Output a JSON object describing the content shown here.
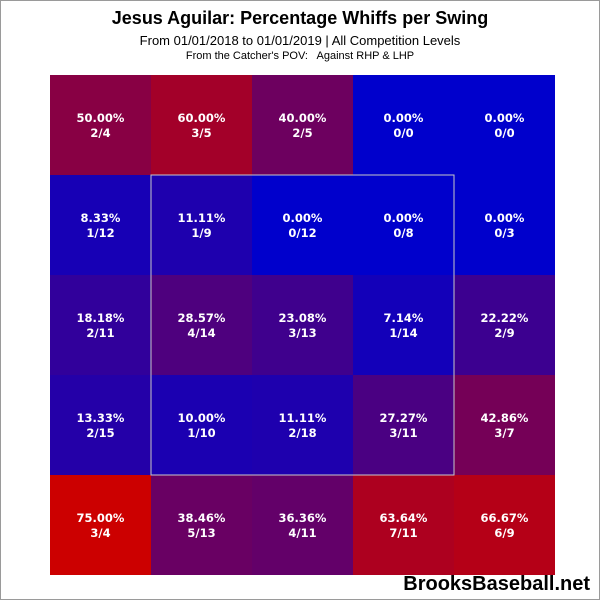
{
  "title": "Jesus Aguilar: Percentage Whiffs per Swing",
  "subtitle": "From 01/01/2018 to 01/01/2019 | All Competition Levels",
  "note": "From the Catcher's POV:   Against RHP & LHP",
  "watermark": "BrooksBaseball.net",
  "colors": {
    "low": "#0000cc",
    "high": "#cc0000",
    "strike_zone_outline": "#c8c8c8"
  },
  "chart_data": {
    "type": "heatmap",
    "title": "Jesus Aguilar: Percentage Whiffs per Swing",
    "rows": 5,
    "cols": 5,
    "strike_zone": "inner 3x3",
    "cells": [
      [
        {
          "pct": "50.00%",
          "frac": "2/4"
        },
        {
          "pct": "60.00%",
          "frac": "3/5"
        },
        {
          "pct": "40.00%",
          "frac": "2/5"
        },
        {
          "pct": "0.00%",
          "frac": "0/0"
        },
        {
          "pct": "0.00%",
          "frac": "0/0"
        }
      ],
      [
        {
          "pct": "8.33%",
          "frac": "1/12"
        },
        {
          "pct": "11.11%",
          "frac": "1/9"
        },
        {
          "pct": "0.00%",
          "frac": "0/12"
        },
        {
          "pct": "0.00%",
          "frac": "0/8"
        },
        {
          "pct": "0.00%",
          "frac": "0/3"
        }
      ],
      [
        {
          "pct": "18.18%",
          "frac": "2/11"
        },
        {
          "pct": "28.57%",
          "frac": "4/14"
        },
        {
          "pct": "23.08%",
          "frac": "3/13"
        },
        {
          "pct": "7.14%",
          "frac": "1/14"
        },
        {
          "pct": "22.22%",
          "frac": "2/9"
        }
      ],
      [
        {
          "pct": "13.33%",
          "frac": "2/15"
        },
        {
          "pct": "10.00%",
          "frac": "1/10"
        },
        {
          "pct": "11.11%",
          "frac": "2/18"
        },
        {
          "pct": "27.27%",
          "frac": "3/11"
        },
        {
          "pct": "42.86%",
          "frac": "3/7"
        }
      ],
      [
        {
          "pct": "75.00%",
          "frac": "3/4"
        },
        {
          "pct": "38.46%",
          "frac": "5/13"
        },
        {
          "pct": "36.36%",
          "frac": "4/11"
        },
        {
          "pct": "63.64%",
          "frac": "7/11"
        },
        {
          "pct": "66.67%",
          "frac": "6/9"
        }
      ]
    ],
    "values": [
      [
        50.0,
        60.0,
        40.0,
        0.0,
        0.0
      ],
      [
        8.33,
        11.11,
        0.0,
        0.0,
        0.0
      ],
      [
        18.18,
        28.57,
        23.08,
        7.14,
        22.22
      ],
      [
        13.33,
        10.0,
        11.11,
        27.27,
        42.86
      ],
      [
        75.0,
        38.46,
        36.36,
        63.64,
        66.67
      ]
    ]
  }
}
